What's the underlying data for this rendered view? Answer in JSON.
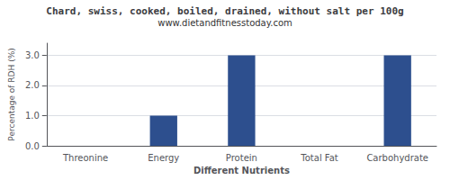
{
  "chart_data": {
    "type": "bar",
    "title": "Chard, swiss, cooked, boiled, drained, without salt per 100g",
    "subtitle": "www.dietandfitnesstoday.com",
    "categories": [
      "Threonine",
      "Energy",
      "Protein",
      "Total Fat",
      "Carbohydrate"
    ],
    "values": [
      0.0,
      1.0,
      3.0,
      0.0,
      3.0
    ],
    "color": "#2d4f8e",
    "xlabel": "Different Nutrients",
    "ylabel": "Percentage of RDH (%)",
    "ylim": [
      0,
      3.4
    ],
    "yticks": [
      {
        "value": 0.0,
        "label": "0.0"
      },
      {
        "value": 1.0,
        "label": "1.0"
      },
      {
        "value": 2.0,
        "label": "2.0"
      },
      {
        "value": 3.0,
        "label": "3.0"
      }
    ],
    "grid": true
  }
}
